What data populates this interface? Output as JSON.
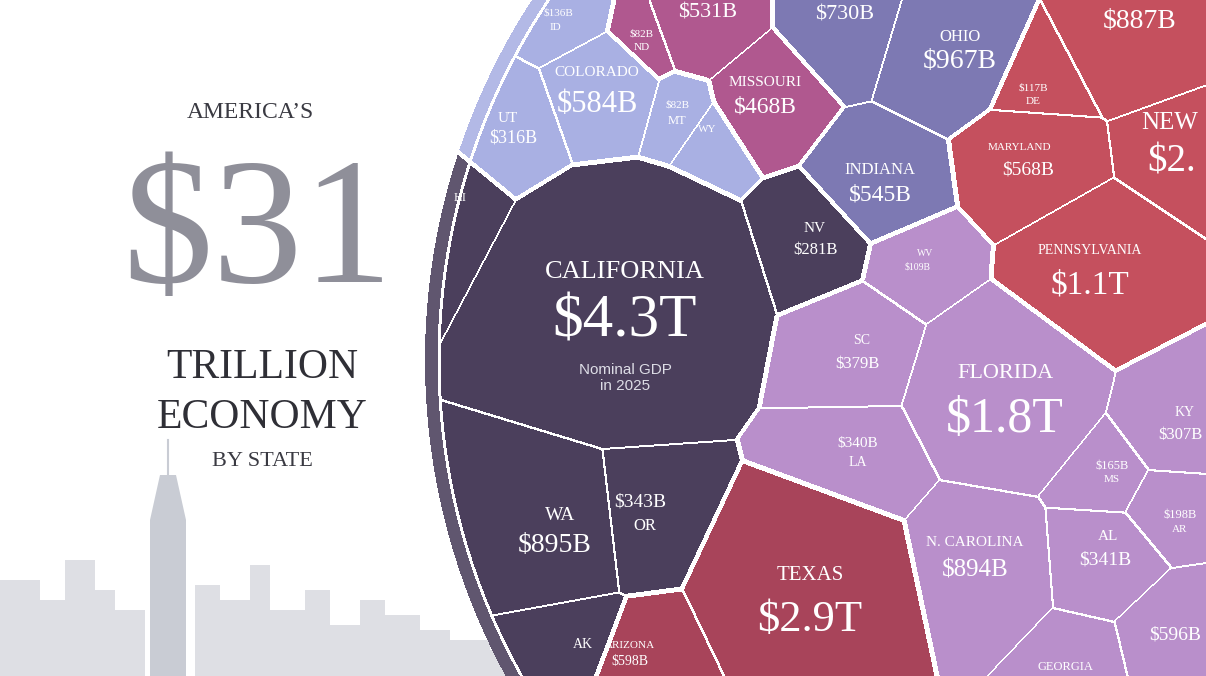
{
  "chart_data": {
    "type": "voronoi",
    "title": {
      "lead": "AMERICA’S",
      "amount": "$31",
      "lines": [
        "TRILLION",
        "ECONOMY"
      ],
      "tail": "BY STATE"
    },
    "annotation": {
      "category": "CALIFORNIA",
      "text": "Nominal GDP\nin 2025"
    },
    "categories": [
      "CALIFORNIA",
      "NV",
      "HI",
      "WA",
      "OR",
      "AK",
      "ID",
      "COLORADO",
      "UT",
      "MT",
      "WY",
      null,
      "ND",
      "MISSOURI",
      null,
      "OHIO",
      "INDIANA",
      null,
      "DE",
      "NEW",
      "MARYLAND",
      "PENNSYLVANIA",
      "WV",
      "SC",
      "FLORIDA",
      "LA",
      "KY",
      "MS",
      "AR",
      "AL",
      "N. CAROLINA",
      "GEORGIA",
      null,
      "TEXAS",
      "ARIZONA"
    ],
    "values": [
      4300,
      281,
      null,
      895,
      343,
      null,
      136,
      584,
      316,
      82,
      null,
      531,
      82,
      468,
      730,
      967,
      545,
      887,
      117,
      null,
      568,
      1100,
      109,
      379,
      1800,
      340,
      307,
      165,
      198,
      341,
      894,
      null,
      596,
      2900,
      598
    ],
    "value_labels": [
      "$4.3T",
      "$281B",
      null,
      "$895B",
      "$343B",
      null,
      "$136B",
      "$584B",
      "$316B",
      "$82B",
      null,
      "$531B",
      "$82B",
      "$468B",
      "$730B",
      "$967B",
      "$545B",
      "$887B",
      "$117B",
      "$2.",
      "$568B",
      "$1.1T",
      "$109B",
      "$379B",
      "$1.8T",
      "$340B",
      "$307B",
      "$165B",
      "$198B",
      "$341B",
      "$894B",
      null,
      "$596B",
      "$2.9T",
      "$598B"
    ],
    "colors": [
      "#4b3f5c",
      "#4b3f5c",
      "#4b3f5c",
      "#4b3f5c",
      "#4b3f5c",
      "#4b3f5c",
      "#a9b0e3",
      "#a9b0e3",
      "#a9b0e3",
      "#a9b0e3",
      "#a9b0e3",
      "#b0588f",
      "#b0588f",
      "#b0588f",
      "#7d79b3",
      "#7d79b3",
      "#7d79b3",
      "#c5505e",
      "#c5505e",
      "#c5505e",
      "#c5505e",
      "#c5505e",
      "#b98fcb",
      "#b98fcb",
      "#b98fcb",
      "#b98fcb",
      "#b98fcb",
      "#b98fcb",
      "#b98fcb",
      "#b98fcb",
      "#b98fcb",
      "#b98fcb",
      "#b98fcb",
      "#a8445a",
      "#a8445a"
    ]
  }
}
